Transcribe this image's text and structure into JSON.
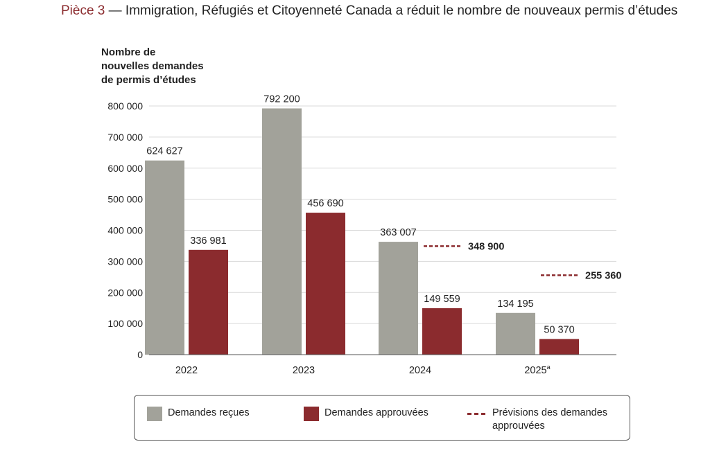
{
  "title": {
    "prefix": "Pièce 3",
    "text": " — Immigration, Réfugiés et Citoyenneté Canada a réduit le nombre de nouveaux permis d’études"
  },
  "chart_data": {
    "type": "bar",
    "ylabel_lines": [
      "Nombre de",
      "nouvelles demandes",
      "de permis d’études"
    ],
    "ylim": [
      0,
      800000
    ],
    "yticks": [
      {
        "value": 0,
        "label": "0"
      },
      {
        "value": 100000,
        "label": "100 000"
      },
      {
        "value": 200000,
        "label": "200 000"
      },
      {
        "value": 300000,
        "label": "300 000"
      },
      {
        "value": 400000,
        "label": "400 000"
      },
      {
        "value": 500000,
        "label": "500 000"
      },
      {
        "value": 600000,
        "label": "600 000"
      },
      {
        "value": 700000,
        "label": "700 000"
      },
      {
        "value": 800000,
        "label": "800 000"
      }
    ],
    "categories": [
      "2022",
      "2023",
      "2024",
      "2025"
    ],
    "category_superscripts": [
      "",
      "",
      "",
      "a"
    ],
    "grid": true,
    "series": [
      {
        "name": "Demandes reçues",
        "color": "#a2a29a",
        "values": [
          624627,
          792200,
          363007,
          134195
        ],
        "labels": [
          "624 627",
          "792 200",
          "363 007",
          "134 195"
        ]
      },
      {
        "name": "Demandes approuvées",
        "color": "#8b2b2e",
        "values": [
          336981,
          456690,
          149559,
          50370
        ],
        "labels": [
          "336 981",
          "456 690",
          "149 559",
          "50 370"
        ]
      }
    ],
    "forecast": {
      "name": "Prévisions des demandes approuvées",
      "color": "#8b2b2e",
      "points": [
        {
          "category": "2024",
          "value": 348900,
          "label": "348 900"
        },
        {
          "category": "2025",
          "value": 255360,
          "label": "255 360"
        }
      ]
    }
  },
  "legend": {
    "received": "Demandes reçues",
    "approved": "Demandes approuvées",
    "forecast_line1": "Prévisions des demandes",
    "forecast_line2": "approuvées"
  }
}
